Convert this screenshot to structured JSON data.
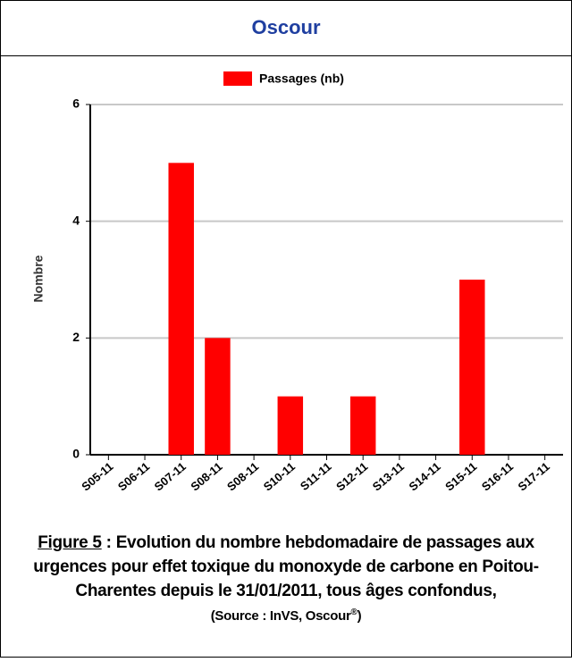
{
  "chart_data": {
    "type": "bar",
    "header": "Oscour",
    "ylabel": "Nombre",
    "categories": [
      "S05-11",
      "S06-11",
      "S07-11",
      "S08-11",
      "S08-11",
      "S10-11",
      "S11-11",
      "S12-11",
      "S13-11",
      "S14-11",
      "S15-11",
      "S16-11",
      "S17-11"
    ],
    "series": [
      {
        "name": "Passages (nb)",
        "color": "#ff0000",
        "values": [
          0,
          0,
          5,
          2,
          0,
          1,
          0,
          1,
          0,
          0,
          3,
          0,
          0
        ]
      }
    ],
    "ylim": [
      0,
      6
    ],
    "yticks": [
      0,
      2,
      4,
      6
    ],
    "grid": true,
    "caption": {
      "figure": "Figure 5",
      "text": " : Evolution du nombre hebdomadaire de passages aux urgences pour effet toxique du  monoxyde de carbone en Poitou-Charentes depuis le 31/01/2011, tous âges confondus,",
      "source": [
        "(Source : InVS, Oscour",
        "®",
        ")"
      ]
    }
  }
}
